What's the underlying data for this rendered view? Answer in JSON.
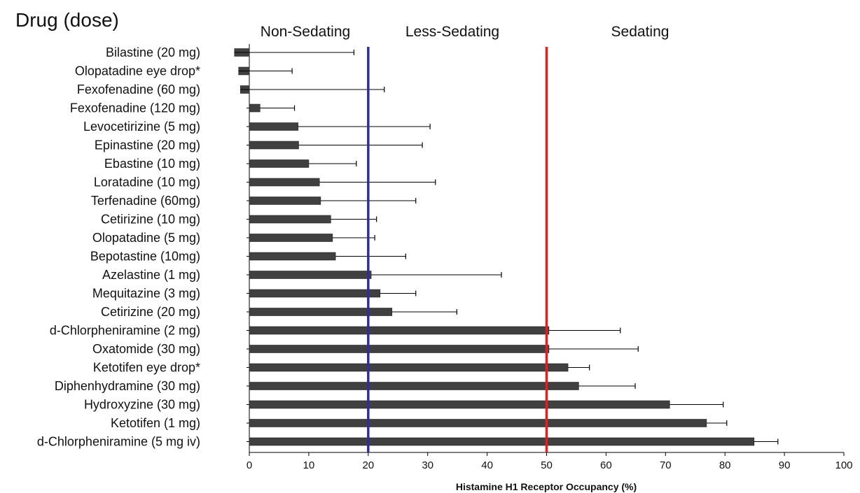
{
  "chart_data": {
    "type": "bar",
    "orientation": "horizontal",
    "category_axis_title": "Drug (dose)",
    "xlabel": "Histamine H1 Receptor Occupancy (%)",
    "xlim": [
      0,
      100
    ],
    "xticks": [
      0,
      10,
      20,
      30,
      40,
      50,
      60,
      70,
      80,
      90,
      100
    ],
    "grid": false,
    "bar_color": "#404040",
    "categories": [
      "Bilastine (20 mg)",
      "Olopatadine eye drop*",
      "Fexofenadine (60 mg)",
      "Fexofenadine (120 mg)",
      "Levocetirizine (5 mg)",
      "Epinastine (20 mg)",
      "Ebastine (10 mg)",
      "Loratadine (10 mg)",
      "Terfenadine (60mg)",
      "Cetirizine (10 mg)",
      "Olopatadine (5 mg)",
      "Bepotastine (10mg)",
      "Azelastine (1 mg)",
      "Mequitazine (3 mg)",
      "Cetirizine (20 mg)",
      "d-Chlorpheniramine (2 mg)",
      "Oxatomide (30 mg)",
      "Ketotifen eye drop*",
      "Diphenhydramine (30 mg)",
      "Hydroxyzine (30 mg)",
      "Ketotifen (1 mg)",
      "d-Chlorpheniramine (5 mg iv)"
    ],
    "values": [
      -2.5,
      -1.8,
      -1.5,
      1.8,
      8.2,
      8.3,
      10.0,
      11.8,
      12.0,
      13.7,
      14.0,
      14.5,
      20.5,
      22.0,
      24.0,
      50.4,
      50.4,
      53.6,
      55.4,
      70.7,
      76.9,
      84.9
    ],
    "error_upper": [
      17.6,
      7.2,
      22.7,
      7.6,
      30.4,
      29.1,
      18.0,
      31.3,
      28.0,
      21.4,
      21.1,
      26.3,
      42.4,
      28.0,
      34.9,
      62.4,
      65.4,
      57.2,
      64.9,
      79.7,
      80.3,
      88.9
    ],
    "reference_lines": [
      {
        "value": 20,
        "color": "#2e2e9a"
      },
      {
        "value": 50,
        "color": "#e02020"
      }
    ],
    "zones": [
      "Non-Sedating",
      "Less-Sedating",
      "Sedating"
    ]
  }
}
